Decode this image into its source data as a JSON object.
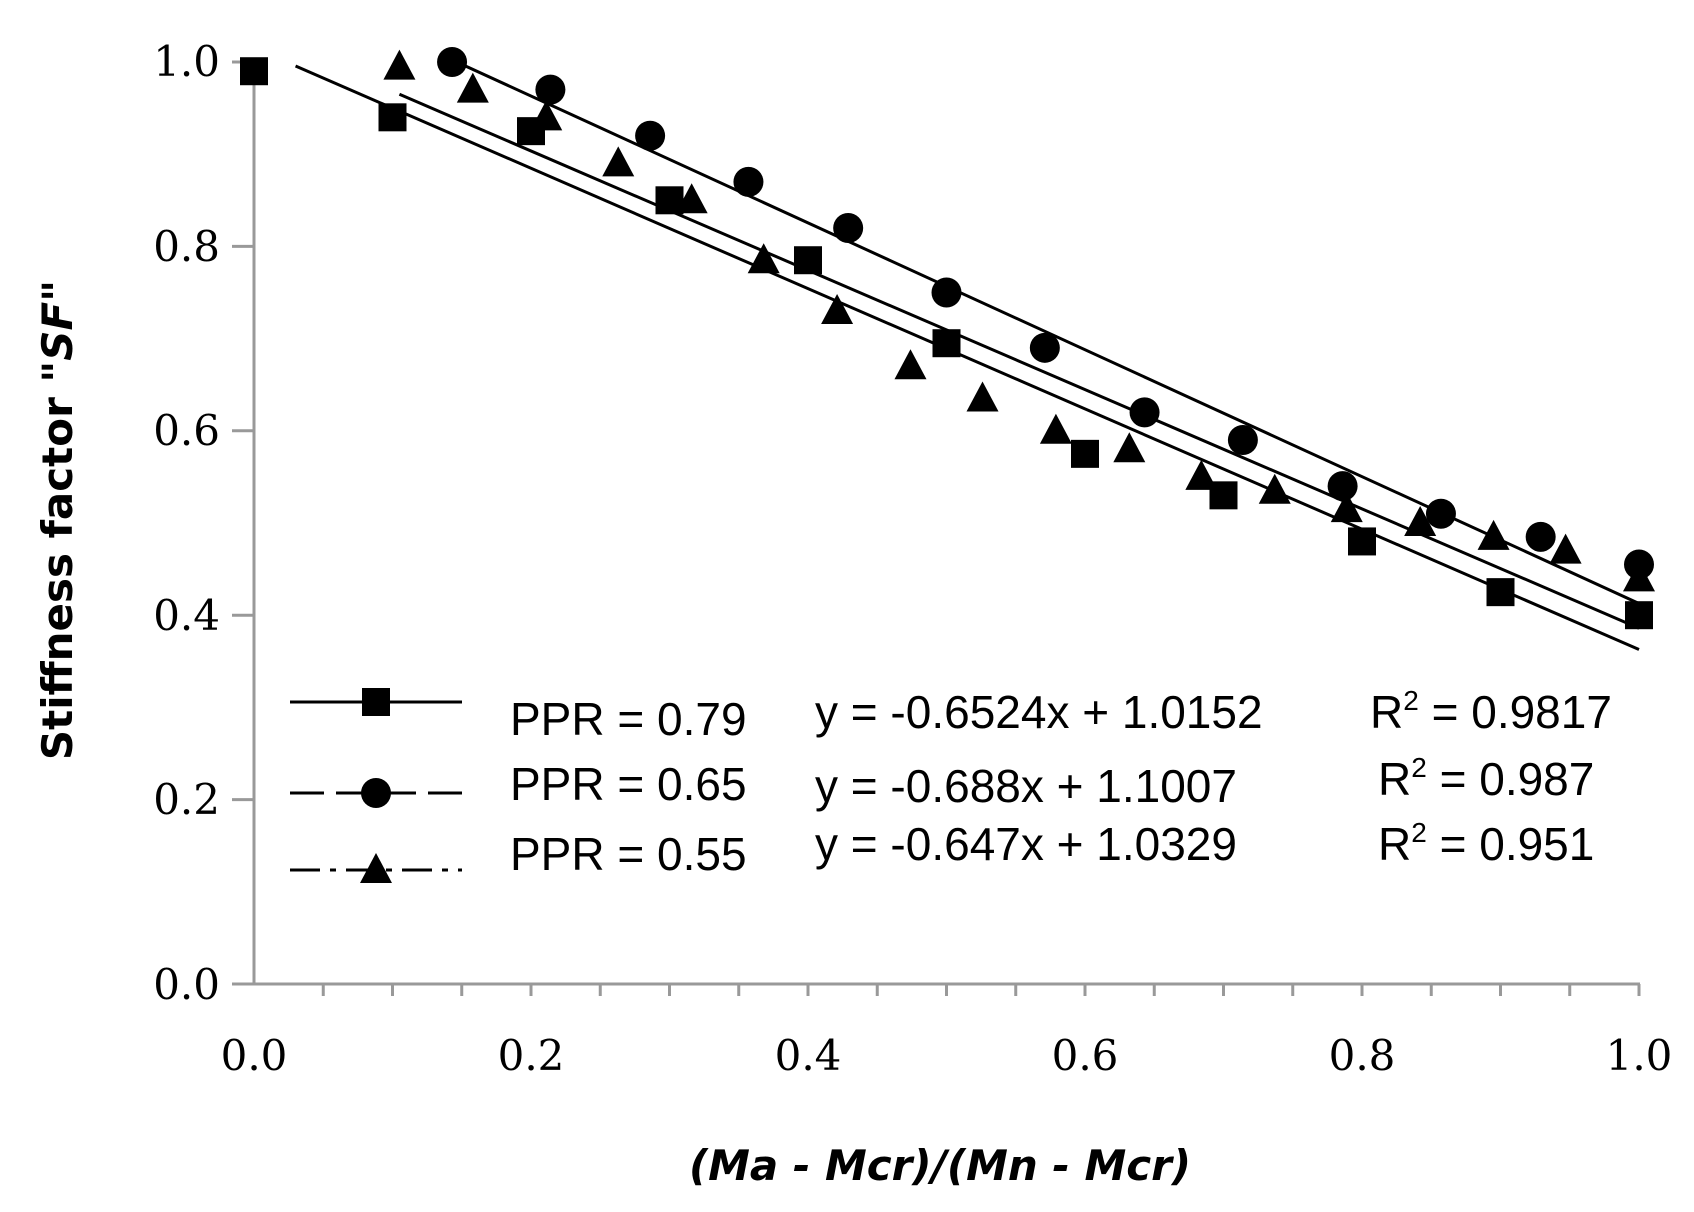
{
  "chart_data": {
    "type": "scatter",
    "title": "",
    "xlabel": "(Ma - Mcr)/(Mn - Mcr)",
    "ylabel_prefix": "Stiffness factor \"",
    "ylabel_italic": "SF",
    "ylabel_suffix": "\"",
    "xlim": [
      0,
      1
    ],
    "ylim": [
      0,
      1
    ],
    "x_ticks": [
      "0.0",
      "0.2",
      "0.4",
      "0.6",
      "0.8",
      "1.0"
    ],
    "y_ticks": [
      "0.0",
      "0.2",
      "0.4",
      "0.6",
      "0.8",
      "1.0"
    ],
    "legend_position": "bottom-left",
    "series": [
      {
        "name": "PPR = 0.79",
        "equation": "y = -0.6524x + 1.0152",
        "r2_prefix": "R",
        "r2_sup": "2",
        "r2_value": " = 0.9817",
        "marker": "square",
        "line_style": "solid",
        "fit": {
          "slope": -0.6524,
          "intercept": 1.0152,
          "x_range": [
            0.03,
            1.0
          ]
        },
        "x": [
          0.0,
          0.1,
          0.2,
          0.3,
          0.4,
          0.5,
          0.6,
          0.7,
          0.8,
          0.9,
          1.0
        ],
        "y": [
          0.99,
          0.94,
          0.925,
          0.85,
          0.785,
          0.695,
          0.575,
          0.53,
          0.48,
          0.425,
          0.4
        ]
      },
      {
        "name": "PPR = 0.65",
        "equation": "y = -0.688x + 1.1007",
        "r2_prefix": "R",
        "r2_sup": "2",
        "r2_value": " = 0.987",
        "marker": "circle",
        "line_style": "dash",
        "fit": {
          "slope": -0.688,
          "intercept": 1.1007,
          "x_range": [
            0.14,
            1.0
          ]
        },
        "x": [
          0.143,
          0.214,
          0.286,
          0.357,
          0.429,
          0.5,
          0.571,
          0.643,
          0.714,
          0.786,
          0.857,
          0.929,
          1.0
        ],
        "y": [
          1.0,
          0.97,
          0.92,
          0.87,
          0.82,
          0.75,
          0.69,
          0.62,
          0.59,
          0.54,
          0.51,
          0.485,
          0.455
        ]
      },
      {
        "name": "PPR = 0.55",
        "equation": "y = -0.647x + 1.0329",
        "r2_prefix": "R",
        "r2_sup": "2",
        "r2_value": " = 0.951",
        "marker": "triangle",
        "line_style": "dashdot",
        "fit": {
          "slope": -0.647,
          "intercept": 1.0329,
          "x_range": [
            0.105,
            1.0
          ]
        },
        "x": [
          0.105,
          0.158,
          0.211,
          0.263,
          0.316,
          0.368,
          0.421,
          0.474,
          0.526,
          0.579,
          0.632,
          0.684,
          0.737,
          0.789,
          0.842,
          0.895,
          0.947,
          1.0
        ],
        "y": [
          0.995,
          0.97,
          0.94,
          0.89,
          0.85,
          0.785,
          0.73,
          0.67,
          0.635,
          0.6,
          0.58,
          0.55,
          0.535,
          0.515,
          0.5,
          0.485,
          0.47,
          0.44
        ]
      }
    ]
  }
}
